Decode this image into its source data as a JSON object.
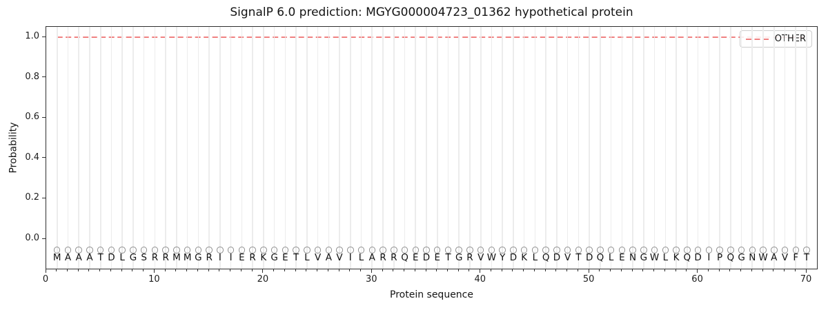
{
  "chart_data": {
    "type": "line",
    "title": "SignalP 6.0 prediction: MGYG000004723_01362 hypothetical protein",
    "xlabel": "Protein sequence",
    "ylabel": "Probability",
    "xlim": [
      0,
      71.1
    ],
    "ylim": [
      -0.154,
      1.051
    ],
    "x_ticks": [
      0,
      10,
      20,
      30,
      40,
      50,
      60,
      70
    ],
    "y_tick_labels": [
      "0.0",
      "0.2",
      "0.4",
      "0.6",
      "0.8",
      "1.0"
    ],
    "grid": {
      "vertical_per_residue": true,
      "horizontal": false,
      "color": "#ececec"
    },
    "sequence": "MAAATDLGSRRMMGRIIERKGETLVAVILARRQEDETGRVWYDKLQDVTDQLENGWLKQDIPQGNWAVFT",
    "sequence_length": 70,
    "x_first_residue": 1,
    "residue_marker": {
      "shape": "open-circle",
      "color": "#909090",
      "y_value": -0.055
    },
    "series": [
      {
        "name": "OTHER",
        "color": "#f08080",
        "line_style": "dashed",
        "values": [
          1.0,
          1.0,
          1.0,
          1.0,
          1.0,
          1.0,
          1.0,
          1.0,
          1.0,
          1.0,
          1.0,
          1.0,
          1.0,
          1.0,
          1.0,
          1.0,
          1.0,
          1.0,
          1.0,
          1.0,
          1.0,
          1.0,
          1.0,
          1.0,
          1.0,
          1.0,
          1.0,
          1.0,
          1.0,
          1.0,
          1.0,
          1.0,
          1.0,
          1.0,
          1.0,
          1.0,
          1.0,
          1.0,
          1.0,
          1.0,
          1.0,
          1.0,
          1.0,
          1.0,
          1.0,
          1.0,
          1.0,
          1.0,
          1.0,
          1.0,
          1.0,
          1.0,
          1.0,
          1.0,
          1.0,
          1.0,
          1.0,
          1.0,
          1.0,
          1.0,
          1.0,
          1.0,
          1.0,
          1.0,
          1.0,
          1.0,
          1.0,
          1.0,
          1.0,
          1.0
        ]
      }
    ],
    "legend": {
      "position": "upper-right",
      "entries": [
        {
          "label": "OTHER",
          "color": "#f08080",
          "style": "dashed"
        }
      ]
    },
    "spine_color": "#2e2e2e"
  }
}
